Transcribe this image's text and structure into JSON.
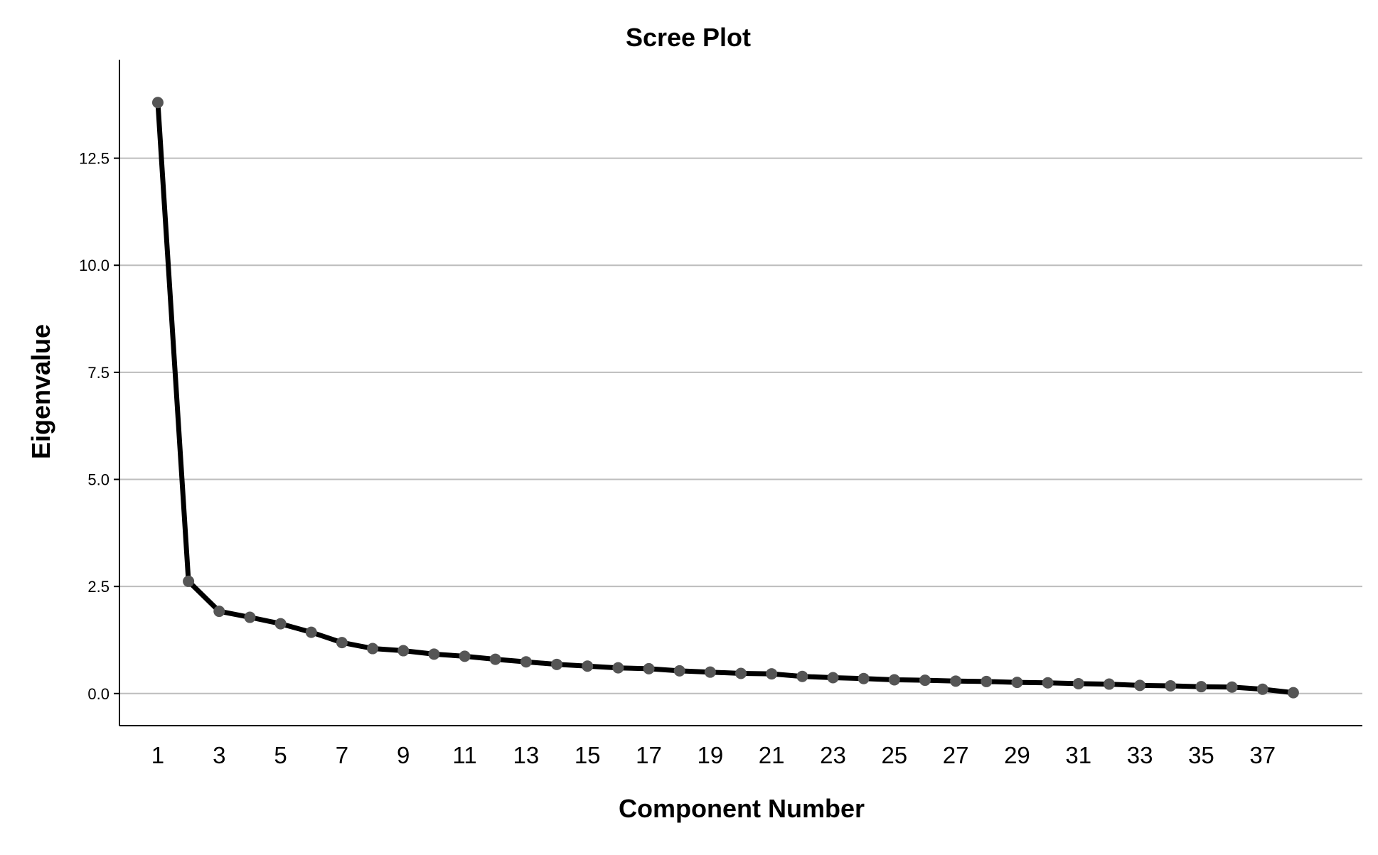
{
  "chart_data": {
    "type": "line",
    "title": "Scree Plot",
    "xlabel": "Component Number",
    "ylabel": "Eigenvalue",
    "x": [
      1,
      2,
      3,
      4,
      5,
      6,
      7,
      8,
      9,
      10,
      11,
      12,
      13,
      14,
      15,
      16,
      17,
      18,
      19,
      20,
      21,
      22,
      23,
      24,
      25,
      26,
      27,
      28,
      29,
      30,
      31,
      32,
      33,
      34,
      35,
      36,
      37,
      38
    ],
    "series": [
      {
        "values": [
          13.8,
          2.62,
          1.92,
          1.78,
          1.63,
          1.43,
          1.19,
          1.05,
          1.0,
          0.92,
          0.87,
          0.8,
          0.74,
          0.68,
          0.64,
          0.6,
          0.58,
          0.53,
          0.5,
          0.47,
          0.46,
          0.4,
          0.37,
          0.35,
          0.32,
          0.31,
          0.29,
          0.28,
          0.26,
          0.25,
          0.23,
          0.22,
          0.19,
          0.18,
          0.16,
          0.15,
          0.1,
          0.02
        ]
      }
    ],
    "x_tick_labels": [
      "1",
      "3",
      "5",
      "7",
      "9",
      "11",
      "13",
      "15",
      "17",
      "19",
      "21",
      "23",
      "25",
      "27",
      "29",
      "31",
      "33",
      "35",
      "37"
    ],
    "y_ticks": [
      "0.0",
      "2.5",
      "5.0",
      "7.5",
      "10.0",
      "12.5"
    ],
    "xlim": [
      -0.25,
      40.25
    ],
    "ylim": [
      -0.75,
      14.8
    ],
    "grid": "horizontal",
    "legend": "none",
    "colors": {
      "line": "#000000",
      "marker": "#555555",
      "grid": "#bdbdbd",
      "axis": "#000000"
    }
  }
}
